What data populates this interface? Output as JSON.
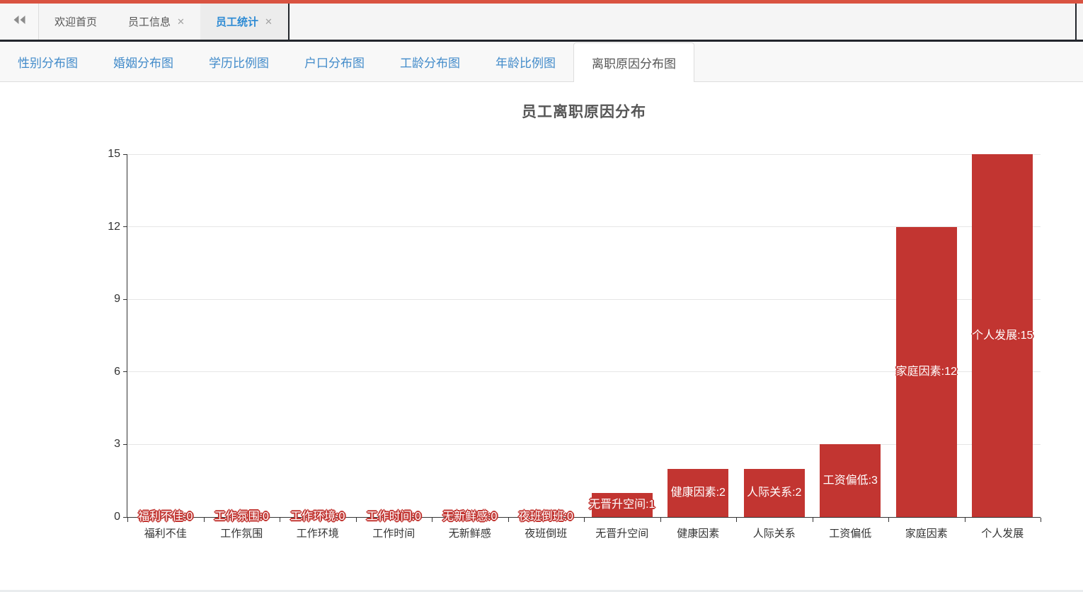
{
  "colors": {
    "accent_red": "#d95341",
    "bar_red": "#c23531",
    "dark_border": "#23262c",
    "tab_link_blue": "#428bca",
    "active_main_tab_blue": "#2e8bd4"
  },
  "main_tabbar": {
    "collapse_icon": "double-chevron-left",
    "close_glyph": "✕",
    "tabs": [
      {
        "label": "欢迎首页",
        "closable": false,
        "active": false
      },
      {
        "label": "员工信息",
        "closable": true,
        "active": false
      },
      {
        "label": "员工统计",
        "closable": true,
        "active": true
      }
    ]
  },
  "chart_tabbar": {
    "tabs": [
      {
        "label": "性别分布图",
        "active": false
      },
      {
        "label": "婚姻分布图",
        "active": false
      },
      {
        "label": "学历比例图",
        "active": false
      },
      {
        "label": "户口分布图",
        "active": false
      },
      {
        "label": "工龄分布图",
        "active": false
      },
      {
        "label": "年龄比例图",
        "active": false
      },
      {
        "label": "离职原因分布图",
        "active": true
      }
    ]
  },
  "chart_data": {
    "type": "bar",
    "title": "员工离职原因分布",
    "categories": [
      "福利不佳",
      "工作氛围",
      "工作环境",
      "工作时间",
      "无新鲜感",
      "夜班倒班",
      "无晋升空间",
      "健康因素",
      "人际关系",
      "工资偏低",
      "家庭因素",
      "个人发展"
    ],
    "values": [
      0,
      0,
      0,
      0,
      0,
      0,
      1,
      2,
      2,
      3,
      12,
      15
    ],
    "bar_labels": [
      "福利不佳:0",
      "工作氛围:0",
      "工作环境:0",
      "工作时间:0",
      "无新鲜感:0",
      "夜班倒班:0",
      "无晋升空间:1",
      "健康因素:2",
      "人际关系:2",
      "工资偏低:3",
      "家庭因素:12",
      "个人发展:15"
    ],
    "xlabel": "",
    "ylabel": "",
    "yticks": [
      0,
      3,
      6,
      9,
      12,
      15
    ],
    "ylim": [
      0,
      15
    ],
    "grid": true,
    "legend": false,
    "bar_color": "#c23531",
    "label_position": "inside",
    "label_color": "#ffffff",
    "label_outline_color": "#c23531"
  }
}
